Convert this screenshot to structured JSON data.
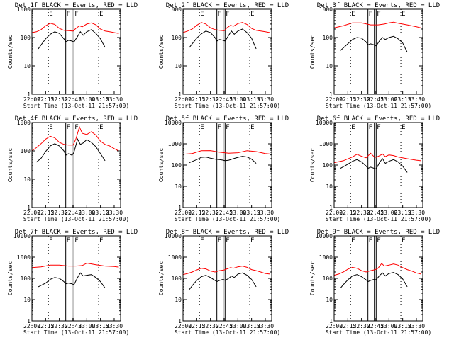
{
  "figure": {
    "xlabel_common": "Start Time (13-Oct-11 21:57:00)",
    "ylabel_common": "Counts/sec",
    "x_tick_labels": [
      "22:00",
      "22:15",
      "22:30",
      "22:45",
      "23:00",
      "23:15",
      "23:30"
    ],
    "x_tick_minutes": [
      0,
      15,
      30,
      45,
      60,
      75,
      90
    ],
    "marker_labels": [
      "E",
      "F",
      "F",
      "E"
    ],
    "colors": {
      "events": "#000000",
      "lld": "#ff0000",
      "axes": "#000000"
    }
  },
  "chart_data": [
    {
      "type": "line",
      "title": "Det 1f BLACK = Events, RED = LLD",
      "ylim": [
        1,
        1000
      ],
      "yscale": "log",
      "y_tick_labels": [
        "1",
        "10",
        "100",
        "1000"
      ],
      "xlim_minutes_from_2200": [
        0,
        97
      ],
      "dotted_vlines_minutes": [
        18,
        73
      ],
      "solid_vlines_minutes": [
        37,
        44,
        46
      ],
      "series": [
        {
          "color": "#ff0000",
          "x": [
            0,
            5,
            10,
            15,
            20,
            25,
            30,
            35,
            40,
            45,
            48,
            52,
            55,
            60,
            65,
            70,
            75,
            80,
            85,
            90,
            95
          ],
          "values": [
            150,
            160,
            190,
            260,
            320,
            290,
            210,
            180,
            175,
            170,
            210,
            260,
            240,
            300,
            330,
            280,
            200,
            170,
            160,
            150,
            140
          ]
        },
        {
          "color": "#000000",
          "x": [
            7,
            10,
            15,
            20,
            25,
            30,
            35,
            37,
            40,
            44,
            46,
            50,
            53,
            56,
            60,
            65,
            70,
            75,
            80
          ],
          "values": [
            40,
            55,
            90,
            130,
            160,
            140,
            90,
            70,
            80,
            75,
            70,
            110,
            160,
            120,
            160,
            190,
            140,
            90,
            45
          ]
        }
      ]
    },
    {
      "type": "line",
      "title": "Det 2f BLACK = Events, RED = LLD",
      "ylim": [
        1,
        1000
      ],
      "yscale": "log",
      "y_tick_labels": [
        "1",
        "10",
        "100",
        "1000"
      ],
      "xlim_minutes_from_2200": [
        0,
        97
      ],
      "dotted_vlines_minutes": [
        18,
        73
      ],
      "solid_vlines_minutes": [
        37,
        44,
        46
      ],
      "series": [
        {
          "color": "#ff0000",
          "x": [
            0,
            5,
            10,
            15,
            20,
            25,
            30,
            35,
            40,
            45,
            48,
            52,
            55,
            60,
            65,
            70,
            75,
            80,
            85,
            90,
            95
          ],
          "values": [
            150,
            170,
            200,
            270,
            340,
            300,
            220,
            190,
            180,
            175,
            220,
            270,
            250,
            310,
            340,
            290,
            210,
            180,
            170,
            160,
            150
          ]
        },
        {
          "color": "#000000",
          "x": [
            7,
            10,
            15,
            20,
            25,
            30,
            35,
            37,
            40,
            44,
            46,
            50,
            53,
            56,
            60,
            65,
            70,
            75,
            80
          ],
          "values": [
            45,
            60,
            95,
            135,
            170,
            150,
            100,
            75,
            85,
            80,
            75,
            120,
            170,
            130,
            170,
            200,
            150,
            95,
            40
          ]
        }
      ]
    },
    {
      "type": "line",
      "title": "Det 3f BLACK = Events, RED = LLD",
      "ylim": [
        1,
        1000
      ],
      "yscale": "log",
      "y_tick_labels": [
        "1",
        "10",
        "100",
        "1000"
      ],
      "xlim_minutes_from_2200": [
        0,
        97
      ],
      "dotted_vlines_minutes": [
        18,
        73
      ],
      "solid_vlines_minutes": [
        37,
        44,
        46
      ],
      "series": [
        {
          "color": "#ff0000",
          "x": [
            0,
            10,
            20,
            30,
            40,
            48,
            55,
            60,
            65,
            70,
            80,
            90,
            95
          ],
          "values": [
            220,
            260,
            330,
            330,
            280,
            280,
            300,
            330,
            350,
            320,
            280,
            240,
            220
          ]
        },
        {
          "color": "#000000",
          "x": [
            7,
            15,
            20,
            25,
            30,
            35,
            37,
            40,
            44,
            46,
            50,
            53,
            56,
            60,
            65,
            70,
            75,
            80
          ],
          "values": [
            35,
            60,
            85,
            100,
            95,
            70,
            55,
            60,
            55,
            50,
            80,
            100,
            85,
            100,
            110,
            90,
            65,
            30
          ]
        }
      ]
    },
    {
      "type": "line",
      "title": "Det 4f BLACK = Events, RED = LLD",
      "ylim": [
        1,
        1000
      ],
      "yscale": "log",
      "y_tick_labels": [
        "1",
        "10",
        "100",
        "1000"
      ],
      "xlim_minutes_from_2200": [
        0,
        97
      ],
      "dotted_vlines_minutes": [
        18,
        73
      ],
      "solid_vlines_minutes": [
        37,
        44,
        46
      ],
      "series": [
        {
          "color": "#ff0000",
          "x": [
            0,
            5,
            10,
            15,
            20,
            25,
            30,
            35,
            40,
            45,
            48,
            52,
            55,
            60,
            65,
            70,
            75,
            80,
            85,
            90,
            95
          ],
          "values": [
            100,
            130,
            180,
            260,
            330,
            290,
            200,
            170,
            160,
            160,
            260,
            700,
            420,
            380,
            480,
            360,
            220,
            170,
            150,
            120,
            100
          ]
        },
        {
          "color": "#000000",
          "x": [
            5,
            10,
            15,
            20,
            25,
            30,
            35,
            37,
            40,
            44,
            46,
            50,
            53,
            56,
            60,
            65,
            70,
            75,
            80
          ],
          "values": [
            40,
            55,
            95,
            150,
            180,
            150,
            100,
            70,
            80,
            70,
            90,
            260,
            170,
            190,
            250,
            200,
            140,
            80,
            45
          ]
        }
      ]
    },
    {
      "type": "line",
      "title": "Det 5f BLACK = Events, RED = LLD",
      "ylim": [
        1,
        10000
      ],
      "yscale": "log",
      "y_tick_labels": [
        "1",
        "10",
        "100",
        "1000",
        "10000"
      ],
      "xlim_minutes_from_2200": [
        0,
        97
      ],
      "dotted_vlines_minutes": [
        18,
        73
      ],
      "solid_vlines_minutes": [
        37,
        44,
        46
      ],
      "series": [
        {
          "color": "#ff0000",
          "x": [
            0,
            10,
            20,
            30,
            40,
            50,
            60,
            70,
            80,
            90,
            95
          ],
          "values": [
            320,
            350,
            470,
            480,
            400,
            360,
            380,
            470,
            430,
            350,
            330
          ]
        },
        {
          "color": "#000000",
          "x": [
            7,
            15,
            20,
            25,
            30,
            35,
            40,
            44,
            46,
            50,
            55,
            60,
            65,
            70,
            75,
            80
          ],
          "values": [
            130,
            180,
            230,
            240,
            210,
            190,
            180,
            170,
            160,
            170,
            200,
            230,
            260,
            240,
            190,
            120
          ]
        }
      ]
    },
    {
      "type": "line",
      "title": "Det 6f BLACK = Events, RED = LLD",
      "ylim": [
        1,
        10000
      ],
      "yscale": "log",
      "y_tick_labels": [
        "1",
        "10",
        "100",
        "1000",
        "10000"
      ],
      "xlim_minutes_from_2200": [
        0,
        97
      ],
      "dotted_vlines_minutes": [
        18,
        73
      ],
      "solid_vlines_minutes": [
        37,
        44,
        46
      ],
      "series": [
        {
          "color": "#ff0000",
          "x": [
            0,
            10,
            20,
            25,
            30,
            35,
            40,
            44,
            46,
            50,
            53,
            56,
            60,
            65,
            70,
            80,
            90,
            95
          ],
          "values": [
            130,
            160,
            240,
            320,
            260,
            220,
            360,
            240,
            230,
            280,
            330,
            250,
            300,
            280,
            240,
            200,
            170,
            160
          ]
        },
        {
          "color": "#000000",
          "x": [
            7,
            15,
            20,
            25,
            30,
            35,
            37,
            40,
            44,
            46,
            50,
            53,
            56,
            60,
            65,
            70,
            75,
            80
          ],
          "values": [
            70,
            110,
            150,
            180,
            140,
            90,
            70,
            80,
            70,
            65,
            140,
            200,
            120,
            150,
            180,
            140,
            90,
            45
          ]
        }
      ]
    },
    {
      "type": "line",
      "title": "Det 7f BLACK = Events, RED = LLD",
      "ylim": [
        1,
        10000
      ],
      "yscale": "log",
      "y_tick_labels": [
        "1",
        "10",
        "100",
        "1000",
        "10000"
      ],
      "xlim_minutes_from_2200": [
        0,
        97
      ],
      "dotted_vlines_minutes": [
        18,
        73
      ],
      "solid_vlines_minutes": [
        37,
        44,
        46
      ],
      "series": [
        {
          "color": "#ff0000",
          "x": [
            0,
            10,
            20,
            30,
            40,
            48,
            55,
            60,
            65,
            70,
            80,
            90,
            95
          ],
          "values": [
            320,
            350,
            420,
            420,
            380,
            380,
            400,
            520,
            480,
            440,
            380,
            360,
            340
          ]
        },
        {
          "color": "#000000",
          "x": [
            7,
            15,
            20,
            25,
            30,
            35,
            37,
            40,
            44,
            46,
            50,
            53,
            56,
            60,
            65,
            70,
            75,
            80
          ],
          "values": [
            40,
            60,
            90,
            110,
            100,
            70,
            55,
            60,
            55,
            50,
            110,
            180,
            130,
            140,
            150,
            110,
            70,
            35
          ]
        }
      ]
    },
    {
      "type": "line",
      "title": "Det 8f BLACK = Events, RED = LLD",
      "ylim": [
        1,
        10000
      ],
      "yscale": "log",
      "y_tick_labels": [
        "1",
        "10",
        "100",
        "1000",
        "10000"
      ],
      "xlim_minutes_from_2200": [
        0,
        97
      ],
      "dotted_vlines_minutes": [
        18,
        73
      ],
      "solid_vlines_minutes": [
        37,
        44,
        46
      ],
      "series": [
        {
          "color": "#ff0000",
          "x": [
            0,
            5,
            10,
            15,
            20,
            25,
            30,
            35,
            40,
            45,
            48,
            52,
            55,
            60,
            65,
            70,
            75,
            80,
            85,
            90,
            95
          ],
          "values": [
            150,
            170,
            200,
            250,
            300,
            280,
            220,
            200,
            230,
            250,
            280,
            320,
            300,
            350,
            380,
            330,
            260,
            230,
            200,
            170,
            160
          ]
        },
        {
          "color": "#000000",
          "x": [
            7,
            10,
            15,
            20,
            25,
            30,
            35,
            37,
            40,
            44,
            46,
            50,
            53,
            56,
            60,
            65,
            70,
            75,
            80
          ],
          "values": [
            30,
            45,
            80,
            120,
            140,
            110,
            80,
            70,
            80,
            90,
            80,
            100,
            130,
            110,
            160,
            180,
            140,
            90,
            40
          ]
        }
      ]
    },
    {
      "type": "line",
      "title": "Det 9f BLACK = Events, RED = LLD",
      "ylim": [
        1,
        10000
      ],
      "yscale": "log",
      "y_tick_labels": [
        "1",
        "10",
        "100",
        "1000",
        "10000"
      ],
      "xlim_minutes_from_2200": [
        0,
        97
      ],
      "dotted_vlines_minutes": [
        18,
        73
      ],
      "solid_vlines_minutes": [
        37,
        44,
        46
      ],
      "series": [
        {
          "color": "#ff0000",
          "x": [
            0,
            5,
            10,
            15,
            20,
            25,
            30,
            35,
            40,
            45,
            48,
            52,
            55,
            60,
            65,
            70,
            75,
            80,
            85,
            90,
            95
          ],
          "values": [
            140,
            160,
            200,
            270,
            330,
            300,
            230,
            200,
            230,
            260,
            300,
            500,
            380,
            420,
            480,
            420,
            320,
            260,
            220,
            180,
            160
          ]
        },
        {
          "color": "#000000",
          "x": [
            7,
            10,
            15,
            20,
            25,
            30,
            35,
            37,
            40,
            44,
            46,
            50,
            53,
            56,
            60,
            65,
            70,
            75,
            80
          ],
          "values": [
            35,
            50,
            85,
            130,
            150,
            120,
            85,
            70,
            80,
            90,
            85,
            140,
            180,
            130,
            170,
            190,
            150,
            95,
            40
          ]
        }
      ]
    }
  ]
}
